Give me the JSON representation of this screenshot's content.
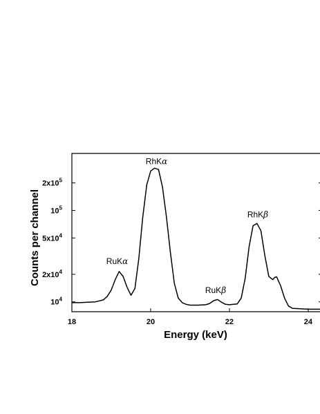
{
  "chart_data": {
    "type": "line",
    "title": "",
    "xlabel": "Energy (keV)",
    "ylabel": "Counts per channel",
    "xlim": [
      18,
      24.3
    ],
    "ylim": [
      7800,
      420000
    ],
    "yscale": "log",
    "grid": false,
    "legend": "none",
    "line_color": "#000000",
    "xticks": [
      {
        "value": 18,
        "label": "18"
      },
      {
        "value": 20,
        "label": "20"
      },
      {
        "value": 22,
        "label": "22"
      },
      {
        "value": 24,
        "label": "24"
      }
    ],
    "yticks": [
      {
        "value": 10000,
        "base": "10",
        "exp": "4"
      },
      {
        "value": 20000,
        "base": "2x10",
        "exp": "4"
      },
      {
        "value": 50000,
        "base": "5x10",
        "exp": "4"
      },
      {
        "value": 100000,
        "base": "10",
        "exp": "5"
      },
      {
        "value": 200000,
        "base": "2x10",
        "exp": "5"
      }
    ],
    "annotations": [
      {
        "main": "RuK",
        "greek": "α",
        "x": 19.15,
        "y": 26000
      },
      {
        "main": "RhK",
        "greek": "α",
        "x": 20.15,
        "y": 320000
      },
      {
        "main": "RuK",
        "greek": "β",
        "x": 21.65,
        "y": 12500
      },
      {
        "main": "RhK",
        "greek": "β",
        "x": 22.72,
        "y": 84000
      }
    ],
    "series": [
      {
        "x": [
          18.0,
          18.2,
          18.4,
          18.6,
          18.8,
          18.9,
          19.0,
          19.1,
          19.2,
          19.3,
          19.4,
          19.5,
          19.6,
          19.7,
          19.8,
          19.9,
          20.0,
          20.1,
          20.2,
          20.3,
          20.4,
          20.5,
          20.6,
          20.7,
          20.8,
          20.9,
          21.0,
          21.2,
          21.4,
          21.5,
          21.6,
          21.7,
          21.8,
          21.9,
          22.0,
          22.2,
          22.3,
          22.4,
          22.5,
          22.6,
          22.7,
          22.8,
          22.9,
          23.0,
          23.1,
          23.15,
          23.2,
          23.3,
          23.4,
          23.5,
          23.6,
          23.8,
          24.0,
          24.3
        ],
        "y": [
          9800,
          9800,
          9900,
          10000,
          10500,
          11500,
          13500,
          17500,
          21500,
          19000,
          14500,
          11800,
          14000,
          30000,
          85000,
          190000,
          270000,
          290000,
          280000,
          180000,
          85000,
          35000,
          16000,
          11000,
          9800,
          9400,
          9200,
          9200,
          9300,
          9600,
          10300,
          10600,
          9900,
          9400,
          9300,
          9500,
          11000,
          18000,
          40000,
          68000,
          72000,
          60000,
          32000,
          19000,
          17500,
          18500,
          18800,
          15000,
          11000,
          9000,
          8500,
          8400,
          8300,
          8300
        ]
      }
    ]
  }
}
